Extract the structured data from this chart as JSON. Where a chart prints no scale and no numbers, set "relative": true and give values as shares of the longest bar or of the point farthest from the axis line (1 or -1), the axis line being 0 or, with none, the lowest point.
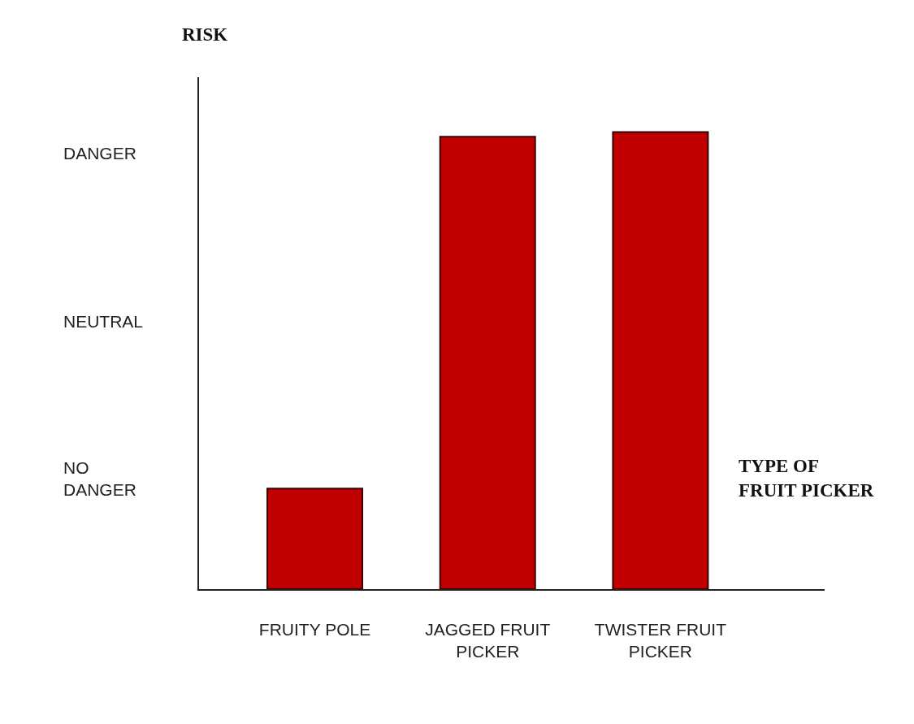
{
  "chart_data": {
    "type": "bar",
    "xlabel": "TYPE OF FRUIT PICKER",
    "ylabel": "RISK",
    "categories": [
      "FRUITY POLE",
      "JAGGED FRUIT PICKER",
      "TWISTER FRUIT PICKER"
    ],
    "values": [
      0.22,
      0.99,
      1
    ],
    "color": "#c00000",
    "relative": true,
    "annotations": [
      "DANGER",
      "NEUTRAL",
      "NO DANGER"
    ],
    "grid": false
  }
}
